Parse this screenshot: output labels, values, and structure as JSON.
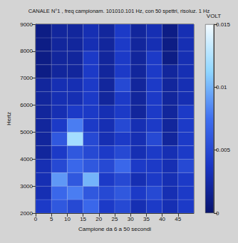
{
  "chart_data": {
    "type": "heatmap",
    "title": "CANALE N°1 , freq campionam. 101010.101 Hz, con 50 spettri, risoluz. 1 Hz",
    "x_label": "Campione da 6 a 50 secondi",
    "y_label": "Hertz",
    "z_label": "VOLT",
    "x_bins": [
      0,
      5,
      10,
      15,
      20,
      25,
      30,
      35,
      40,
      45,
      50
    ],
    "y_bins": [
      2000,
      2500,
      3000,
      3500,
      4000,
      4500,
      5000,
      5500,
      6000,
      6500,
      7000,
      7500,
      8000,
      8500,
      9000
    ],
    "cells": [
      [
        0.004,
        0.006,
        0.005,
        0.007,
        0.004,
        0.005,
        0.003,
        0.004,
        0.003,
        0.004
      ],
      [
        0.003,
        0.007,
        0.008,
        0.006,
        0.005,
        0.006,
        0.004,
        0.005,
        0.003,
        0.004
      ],
      [
        0.003,
        0.009,
        0.006,
        0.01,
        0.004,
        0.005,
        0.003,
        0.004,
        0.003,
        0.004
      ],
      [
        0.003,
        0.005,
        0.007,
        0.006,
        0.005,
        0.007,
        0.004,
        0.004,
        0.003,
        0.005
      ],
      [
        0.002,
        0.004,
        0.006,
        0.005,
        0.004,
        0.005,
        0.003,
        0.004,
        0.003,
        0.004
      ],
      [
        0.002,
        0.006,
        0.012,
        0.005,
        0.003,
        0.004,
        0.003,
        0.005,
        0.002,
        0.004
      ],
      [
        0.002,
        0.004,
        0.008,
        0.004,
        0.003,
        0.005,
        0.003,
        0.004,
        0.002,
        0.004
      ],
      [
        0.002,
        0.003,
        0.004,
        0.004,
        0.003,
        0.004,
        0.002,
        0.004,
        0.002,
        0.004
      ],
      [
        0.002,
        0.003,
        0.003,
        0.004,
        0.002,
        0.004,
        0.002,
        0.004,
        0.002,
        0.003
      ],
      [
        0.002,
        0.003,
        0.003,
        0.004,
        0.002,
        0.005,
        0.002,
        0.004,
        0.002,
        0.003
      ],
      [
        0.001,
        0.002,
        0.002,
        0.004,
        0.002,
        0.004,
        0.002,
        0.004,
        0.002,
        0.003
      ],
      [
        0.001,
        0.002,
        0.002,
        0.004,
        0.002,
        0.004,
        0.002,
        0.004,
        0.001,
        0.003
      ],
      [
        0.001,
        0.002,
        0.002,
        0.003,
        0.002,
        0.004,
        0.002,
        0.003,
        0.001,
        0.003
      ],
      [
        0.001,
        0.002,
        0.002,
        0.003,
        0.002,
        0.004,
        0.002,
        0.003,
        0.001,
        0.003
      ]
    ],
    "xlim": [
      0,
      50
    ],
    "xticks": [
      0,
      5,
      10,
      15,
      20,
      25,
      30,
      35,
      40,
      45
    ],
    "ylim": [
      2000,
      9000
    ],
    "yticks": [
      2000,
      3000,
      4000,
      5000,
      6000,
      7000,
      8000,
      9000
    ],
    "zlim": [
      0,
      0.015
    ],
    "zticks": [
      0,
      0.005,
      0.01,
      0.015
    ],
    "grid": true
  }
}
